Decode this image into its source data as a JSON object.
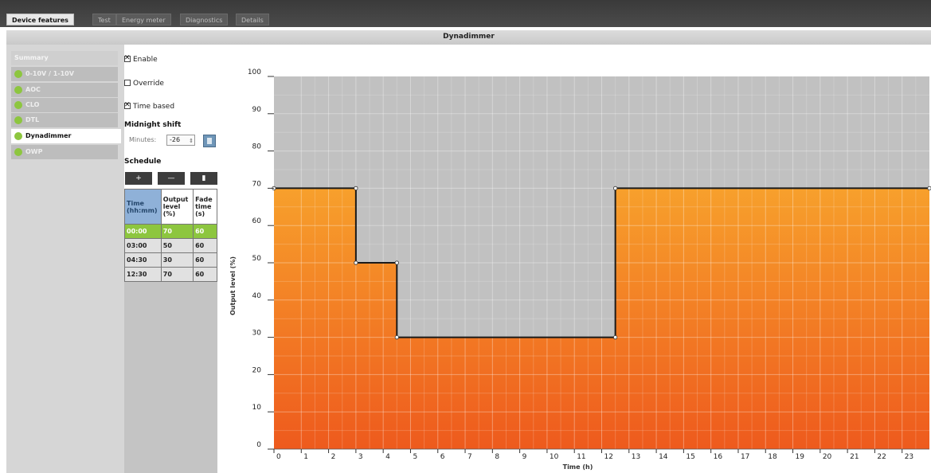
{
  "tabs": [
    {
      "label": "Device features",
      "active": true
    },
    {
      "label": "Test",
      "active": false
    },
    {
      "label": "Energy meter",
      "active": false
    },
    {
      "label": "Diagnostics",
      "active": false
    },
    {
      "label": "Details",
      "active": false
    }
  ],
  "header": {
    "title": "Dynadimmer"
  },
  "sidebar": {
    "items": [
      {
        "label": "Summary",
        "active": false
      },
      {
        "label": "0-10V / 1-10V",
        "active": false
      },
      {
        "label": "AOC",
        "active": false
      },
      {
        "label": "CLO",
        "active": false
      },
      {
        "label": "DTL",
        "active": false
      },
      {
        "label": "Dynadimmer",
        "active": true
      },
      {
        "label": "OWP",
        "active": false
      }
    ]
  },
  "form": {
    "enable": {
      "label": "Enable",
      "checked": true
    },
    "override": {
      "label": "Override",
      "checked": false
    },
    "time_based": {
      "label": "Time based",
      "checked": true
    },
    "midnight_shift_title": "Midnight shift",
    "minutes_label": "Minutes:",
    "minutes_value": "-26",
    "schedule_title": "Schedule",
    "schedule_buttons": {
      "add": "+",
      "remove": "—",
      "new": "▮"
    }
  },
  "schedule_table": {
    "headers": [
      "Time (hh:mm)",
      "Output level (%)",
      "Fade time (s)"
    ],
    "rows": [
      [
        "00:00",
        "70",
        "60"
      ],
      [
        "03:00",
        "50",
        "60"
      ],
      [
        "04:30",
        "30",
        "60"
      ],
      [
        "12:30",
        "70",
        "60"
      ]
    ],
    "selected_row": 0
  },
  "colors": {
    "accent_green": "#8dc63f",
    "time_header": "#8fb1d8",
    "plot_bg": "#c1c1c1",
    "fill_top": "#f7a02c",
    "fill_bottom": "#ee5a1d"
  },
  "chart_data": {
    "type": "area",
    "title": "",
    "xlabel": "Time (h)",
    "ylabel": "Output level (%)",
    "xlim": [
      0,
      24
    ],
    "ylim": [
      0,
      100
    ],
    "x_ticks": [
      "0",
      "1",
      "2",
      "3",
      "4",
      "5",
      "6",
      "7",
      "8",
      "9",
      "10",
      "11",
      "12",
      "13",
      "14",
      "15",
      "16",
      "17",
      "18",
      "19",
      "20",
      "21",
      "22",
      "23"
    ],
    "y_ticks": [
      "0",
      "10",
      "20",
      "30",
      "40",
      "50",
      "60",
      "70",
      "80",
      "90",
      "100"
    ],
    "grid": true,
    "series": [
      {
        "points": [
          [
            0,
            70
          ],
          [
            3,
            70
          ],
          [
            3,
            50
          ],
          [
            4.5,
            50
          ],
          [
            4.5,
            30
          ],
          [
            12.5,
            30
          ],
          [
            12.5,
            70
          ],
          [
            24,
            70
          ]
        ]
      }
    ]
  }
}
